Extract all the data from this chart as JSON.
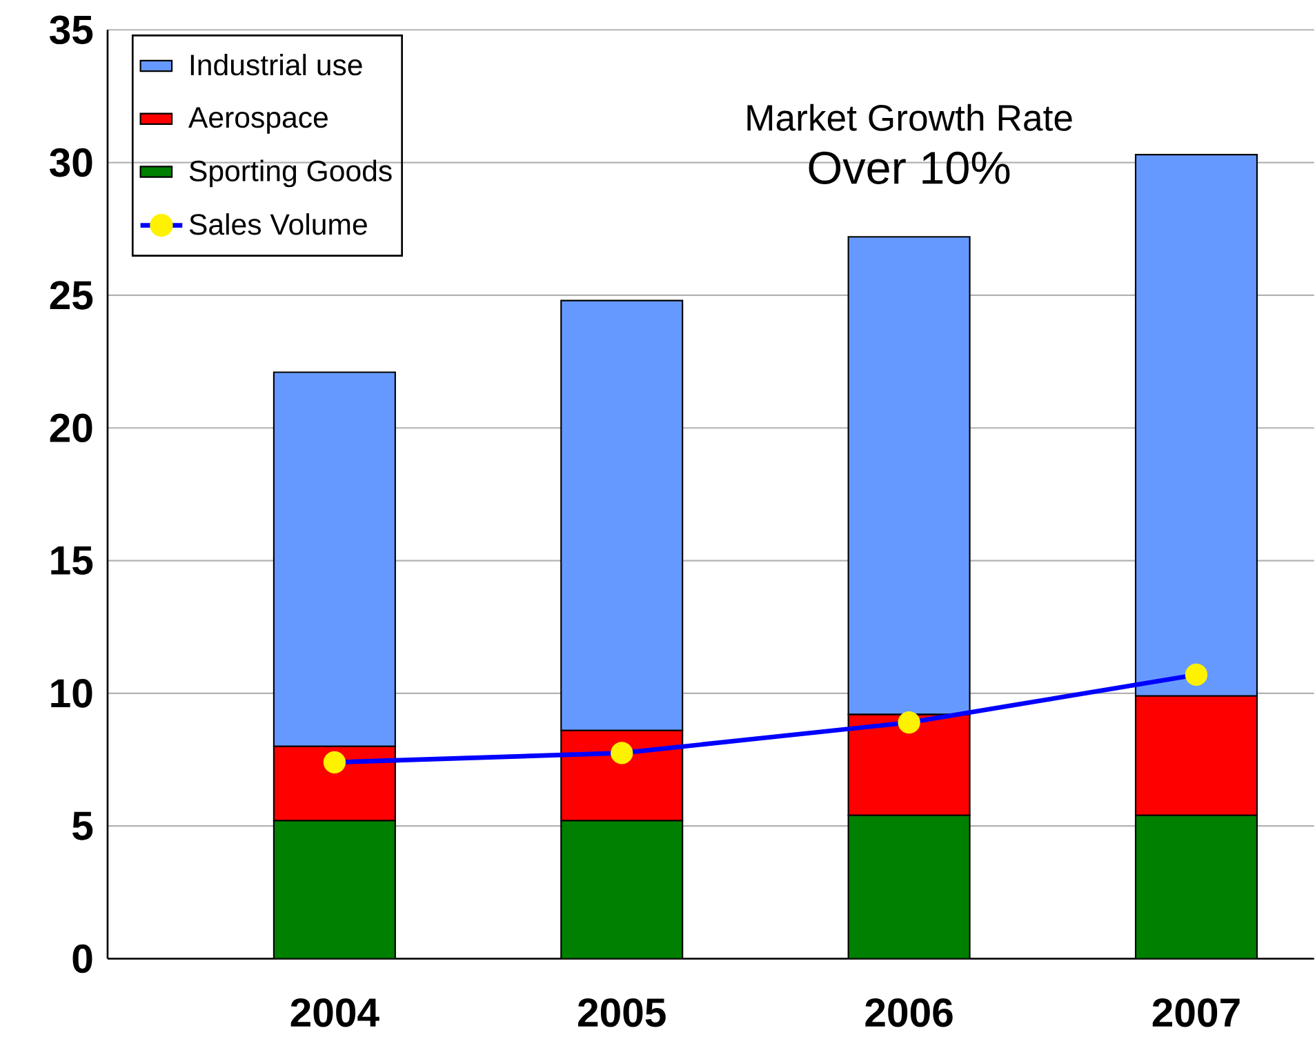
{
  "chart_data": {
    "type": "bar",
    "stacked": true,
    "categories": [
      "2004",
      "2005",
      "2006",
      "2007"
    ],
    "series": [
      {
        "name": "Sporting Goods",
        "color": "#008000",
        "values": [
          5.2,
          5.2,
          5.4,
          5.4
        ]
      },
      {
        "name": "Aerospace",
        "color": "#ff0000",
        "values": [
          2.8,
          3.4,
          3.8,
          4.5
        ]
      },
      {
        "name": "Industrial use",
        "color": "#6699ff",
        "values": [
          14.1,
          16.2,
          18.0,
          20.4
        ]
      },
      {
        "name": "Sales Volume",
        "type": "line",
        "color": "#0000ff",
        "marker": "circle",
        "values": [
          7.4,
          7.75,
          8.9,
          10.7
        ]
      }
    ],
    "ylim": [
      0,
      35
    ],
    "yticks": [
      0,
      5,
      10,
      15,
      20,
      25,
      30,
      35
    ],
    "grid": "y",
    "legend": "top left",
    "annotations": [
      "Market Growth Rate",
      "Over 10%"
    ]
  }
}
